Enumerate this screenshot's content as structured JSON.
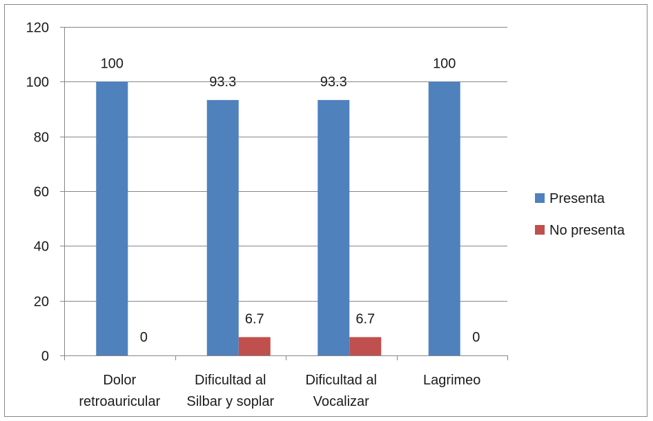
{
  "chart_data": {
    "type": "bar",
    "title": "",
    "xlabel": "",
    "ylabel": "",
    "ylim": [
      0,
      120
    ],
    "yticks": [
      "0",
      "20",
      "40",
      "60",
      "80",
      "100",
      "120"
    ],
    "grid": true,
    "legend_position": "right",
    "categories": [
      [
        "Dolor",
        "retroauricular"
      ],
      [
        "Dificultad al",
        "Silbar y soplar"
      ],
      [
        "Dificultad al",
        "Vocalizar"
      ],
      [
        "Lagrimeo"
      ]
    ],
    "series": [
      {
        "name": "Presenta",
        "color": "#4F81BD",
        "values": [
          100,
          93.3,
          93.3,
          100
        ],
        "labels": [
          "100",
          "93.3",
          "93.3",
          "100"
        ]
      },
      {
        "name": "No presenta",
        "color": "#C0504D",
        "values": [
          0,
          6.7,
          6.7,
          0
        ],
        "labels": [
          "0",
          "6.7",
          "6.7",
          "0"
        ]
      }
    ]
  }
}
